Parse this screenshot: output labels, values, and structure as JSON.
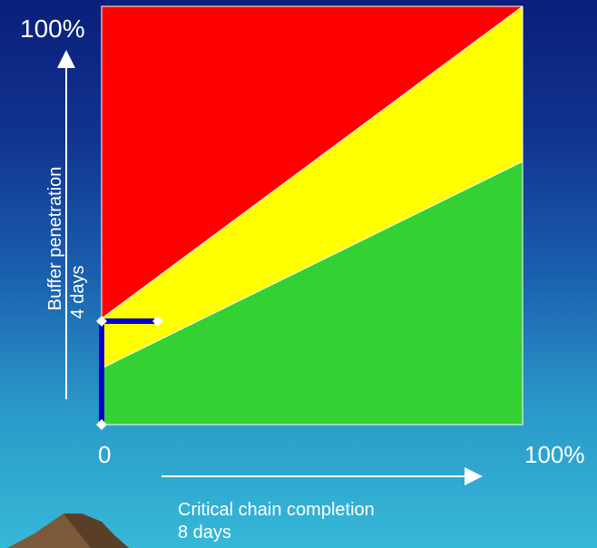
{
  "labels": {
    "y_max": "100%",
    "x_min": "0",
    "x_max": "100%",
    "y_title": "Buffer penetration",
    "y_value": "4 days",
    "x_title": "Critical chain completion",
    "x_value": "8 days"
  },
  "zones": [
    {
      "name": "red",
      "color": "#ff0000"
    },
    {
      "name": "yellow",
      "color": "#ffff00"
    },
    {
      "name": "green",
      "color": "#33d133"
    }
  ],
  "colors": {
    "marker_line": "#0000cc",
    "axis_arrow": "#ffffff",
    "mountain": "#7a5a3a"
  }
}
